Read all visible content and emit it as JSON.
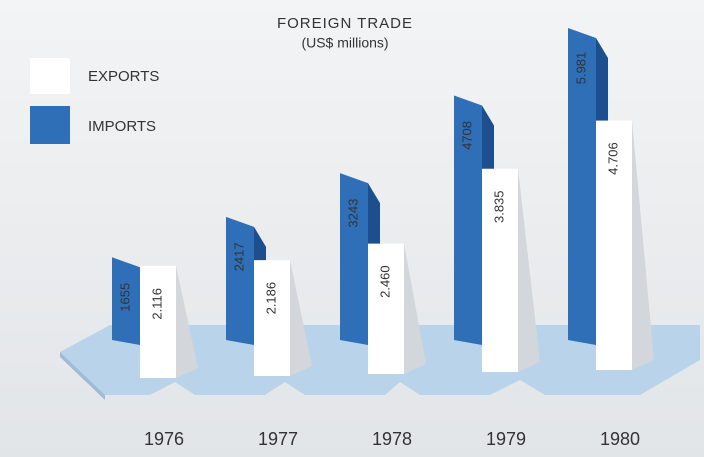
{
  "chart_data": {
    "type": "bar3d",
    "title": "FOREIGN TRADE",
    "subtitle": "(US$ millions)",
    "categories": [
      "1976",
      "1977",
      "1978",
      "1979",
      "1980"
    ],
    "series": [
      {
        "name": "EXPORTS",
        "color": "#ffffff",
        "values": [
          2116,
          2186,
          2460,
          3835,
          4706
        ],
        "value_labels": [
          "2.116",
          "2.186",
          "2.460",
          "3.835",
          "4.706"
        ]
      },
      {
        "name": "IMPORTS",
        "color": "#2f6fb7",
        "values": [
          1655,
          2417,
          3243,
          4708,
          5981
        ],
        "value_labels": [
          "1655",
          "2417",
          "3243",
          "4708",
          "5.981"
        ]
      }
    ]
  }
}
